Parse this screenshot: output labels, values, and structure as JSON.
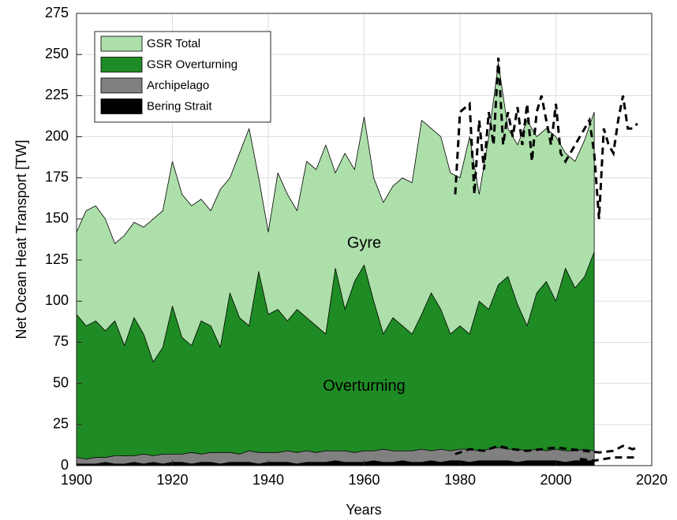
{
  "chart_data": {
    "type": "area",
    "xlabel": "Years",
    "ylabel": "Net Ocean Heat Transport [TW]",
    "xlim": [
      1900,
      2020
    ],
    "ylim": [
      0,
      275
    ],
    "xticks": [
      1900,
      1920,
      1940,
      1960,
      1980,
      2000,
      2020
    ],
    "yticks": [
      0,
      25,
      50,
      75,
      100,
      125,
      150,
      175,
      200,
      225,
      250,
      275
    ],
    "grid": true,
    "legend": "upper left",
    "x": [
      1900,
      1902,
      1904,
      1906,
      1908,
      1910,
      1912,
      1914,
      1916,
      1918,
      1920,
      1922,
      1924,
      1926,
      1928,
      1930,
      1932,
      1934,
      1936,
      1938,
      1940,
      1942,
      1944,
      1946,
      1948,
      1950,
      1952,
      1954,
      1956,
      1958,
      1960,
      1962,
      1964,
      1966,
      1968,
      1970,
      1972,
      1974,
      1976,
      1978,
      1980,
      1982,
      1984,
      1986,
      1988,
      1990,
      1992,
      1994,
      1996,
      1998,
      2000,
      2002,
      2004,
      2006,
      2008
    ],
    "series": [
      {
        "name": "GSR Total",
        "color": "#addfaa",
        "values": [
          142,
          155,
          158,
          150,
          135,
          140,
          148,
          145,
          150,
          155,
          185,
          165,
          158,
          162,
          155,
          168,
          175,
          190,
          205,
          175,
          142,
          178,
          165,
          155,
          185,
          180,
          195,
          178,
          190,
          180,
          212,
          175,
          160,
          170,
          175,
          172,
          210,
          205,
          200,
          178,
          175,
          200,
          165,
          200,
          245,
          205,
          195,
          210,
          200,
          205,
          200,
          190,
          185,
          198,
          215
        ]
      },
      {
        "name": "GSR Overturning",
        "color": "#1f8b24",
        "values": [
          92,
          85,
          88,
          82,
          88,
          73,
          90,
          80,
          63,
          72,
          97,
          78,
          73,
          88,
          85,
          72,
          105,
          90,
          85,
          118,
          92,
          95,
          88,
          95,
          90,
          85,
          80,
          120,
          95,
          112,
          122,
          100,
          80,
          90,
          85,
          80,
          92,
          105,
          95,
          80,
          85,
          80,
          100,
          95,
          110,
          115,
          98,
          85,
          105,
          112,
          100,
          120,
          108,
          115,
          130
        ]
      },
      {
        "name": "Archipelago",
        "color": "#808080",
        "values": [
          5,
          4,
          5,
          5,
          6,
          6,
          6,
          7,
          6,
          7,
          7,
          7,
          8,
          7,
          8,
          8,
          8,
          7,
          9,
          8,
          8,
          8,
          9,
          8,
          9,
          8,
          9,
          9,
          9,
          8,
          9,
          9,
          10,
          9,
          9,
          9,
          10,
          9,
          10,
          9,
          10,
          10,
          9,
          10,
          11,
          10,
          10,
          9,
          10,
          9,
          10,
          9,
          9,
          10,
          9
        ]
      },
      {
        "name": "Bering Strait",
        "color": "#000000",
        "values": [
          1,
          1,
          1,
          2,
          1,
          1,
          2,
          1,
          2,
          1,
          2,
          2,
          1,
          2,
          2,
          1,
          2,
          2,
          2,
          1,
          2,
          2,
          2,
          1,
          2,
          2,
          2,
          3,
          2,
          2,
          2,
          3,
          2,
          2,
          3,
          2,
          2,
          3,
          2,
          3,
          3,
          2,
          3,
          3,
          3,
          3,
          2,
          3,
          3,
          3,
          3,
          2,
          3,
          3,
          3
        ]
      }
    ],
    "lines": [
      {
        "color": "#000000",
        "x": [
          1979,
          1980,
          1982,
          1983,
          1984,
          1985,
          1986,
          1987,
          1988,
          1989,
          1990,
          1991,
          1992,
          1993,
          1994,
          1995,
          1996,
          1997,
          1998,
          1999,
          2000,
          2001,
          2002,
          2003,
          2004,
          2005,
          2006,
          2007,
          2008,
          2009,
          2010,
          2011,
          2012,
          2013,
          2014,
          2015,
          2016,
          2017
        ],
        "values": [
          165,
          215,
          220,
          165,
          210,
          180,
          215,
          195,
          248,
          195,
          215,
          200,
          218,
          195,
          220,
          185,
          215,
          225,
          210,
          195,
          220,
          190,
          185,
          190,
          195,
          200,
          205,
          210,
          190,
          150,
          205,
          195,
          190,
          210,
          225,
          205,
          205,
          208
        ]
      },
      {
        "color": "#000000",
        "x": [
          1979,
          1982,
          1985,
          1988,
          1991,
          1994,
          1997,
          2000,
          2003,
          2006,
          2009,
          2012,
          2014,
          2016,
          2017
        ],
        "values": [
          7,
          10,
          9,
          12,
          10,
          9,
          10,
          11,
          10,
          9,
          8,
          9,
          12,
          10,
          11
        ]
      },
      {
        "color": "#000000",
        "x": [
          2005,
          2008,
          2012,
          2015,
          2017
        ],
        "values": [
          4,
          3,
          5,
          5,
          5
        ]
      }
    ],
    "annotations": [
      {
        "text": "Gyre",
        "x": 1960,
        "y": 135
      },
      {
        "text": "Overturning",
        "x": 1960,
        "y": 48
      }
    ]
  }
}
